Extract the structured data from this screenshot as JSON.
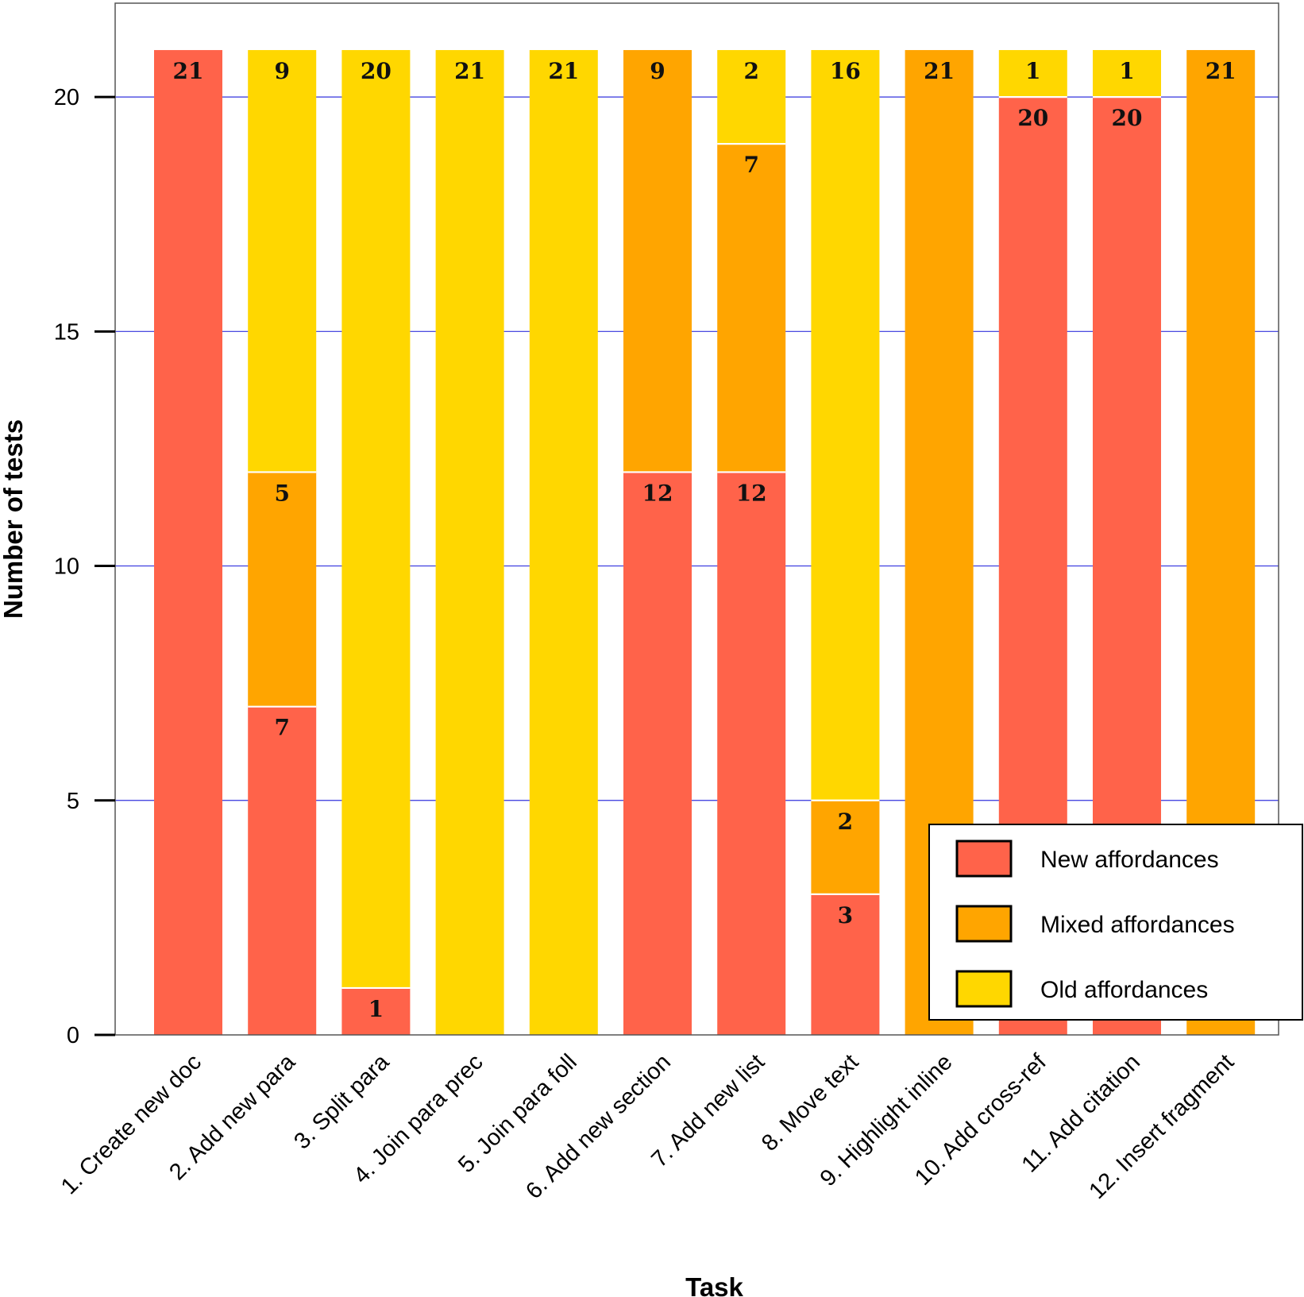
{
  "chart_data": {
    "type": "bar",
    "stacked": true,
    "xlabel": "Task",
    "ylabel": "Number of tests",
    "ylim": [
      0,
      22
    ],
    "yticks": [
      0,
      5,
      10,
      15,
      20
    ],
    "grid": "horizontal",
    "legend_position": "bottom-right",
    "categories": [
      "1. Create new doc",
      "2. Add new para",
      "3. Split para",
      "4. Join para prec",
      "5. Join para foll",
      "6. Add new section",
      "7. Add new list",
      "8. Move text",
      "9. Highlight inline",
      "10. Add cross-ref",
      "11. Add citation",
      "12. Insert fragment"
    ],
    "series": [
      {
        "name": "New affordances",
        "color": "#ff634a",
        "values": [
          21,
          7,
          1,
          0,
          0,
          12,
          12,
          3,
          0,
          20,
          20,
          0
        ]
      },
      {
        "name": "Mixed affordances",
        "color": "#ffa500",
        "values": [
          0,
          5,
          0,
          0,
          0,
          9,
          7,
          2,
          21,
          0,
          0,
          21
        ]
      },
      {
        "name": "Old affordances",
        "color": "#ffd700",
        "values": [
          0,
          9,
          20,
          21,
          21,
          0,
          2,
          16,
          0,
          1,
          1,
          0
        ]
      }
    ]
  }
}
